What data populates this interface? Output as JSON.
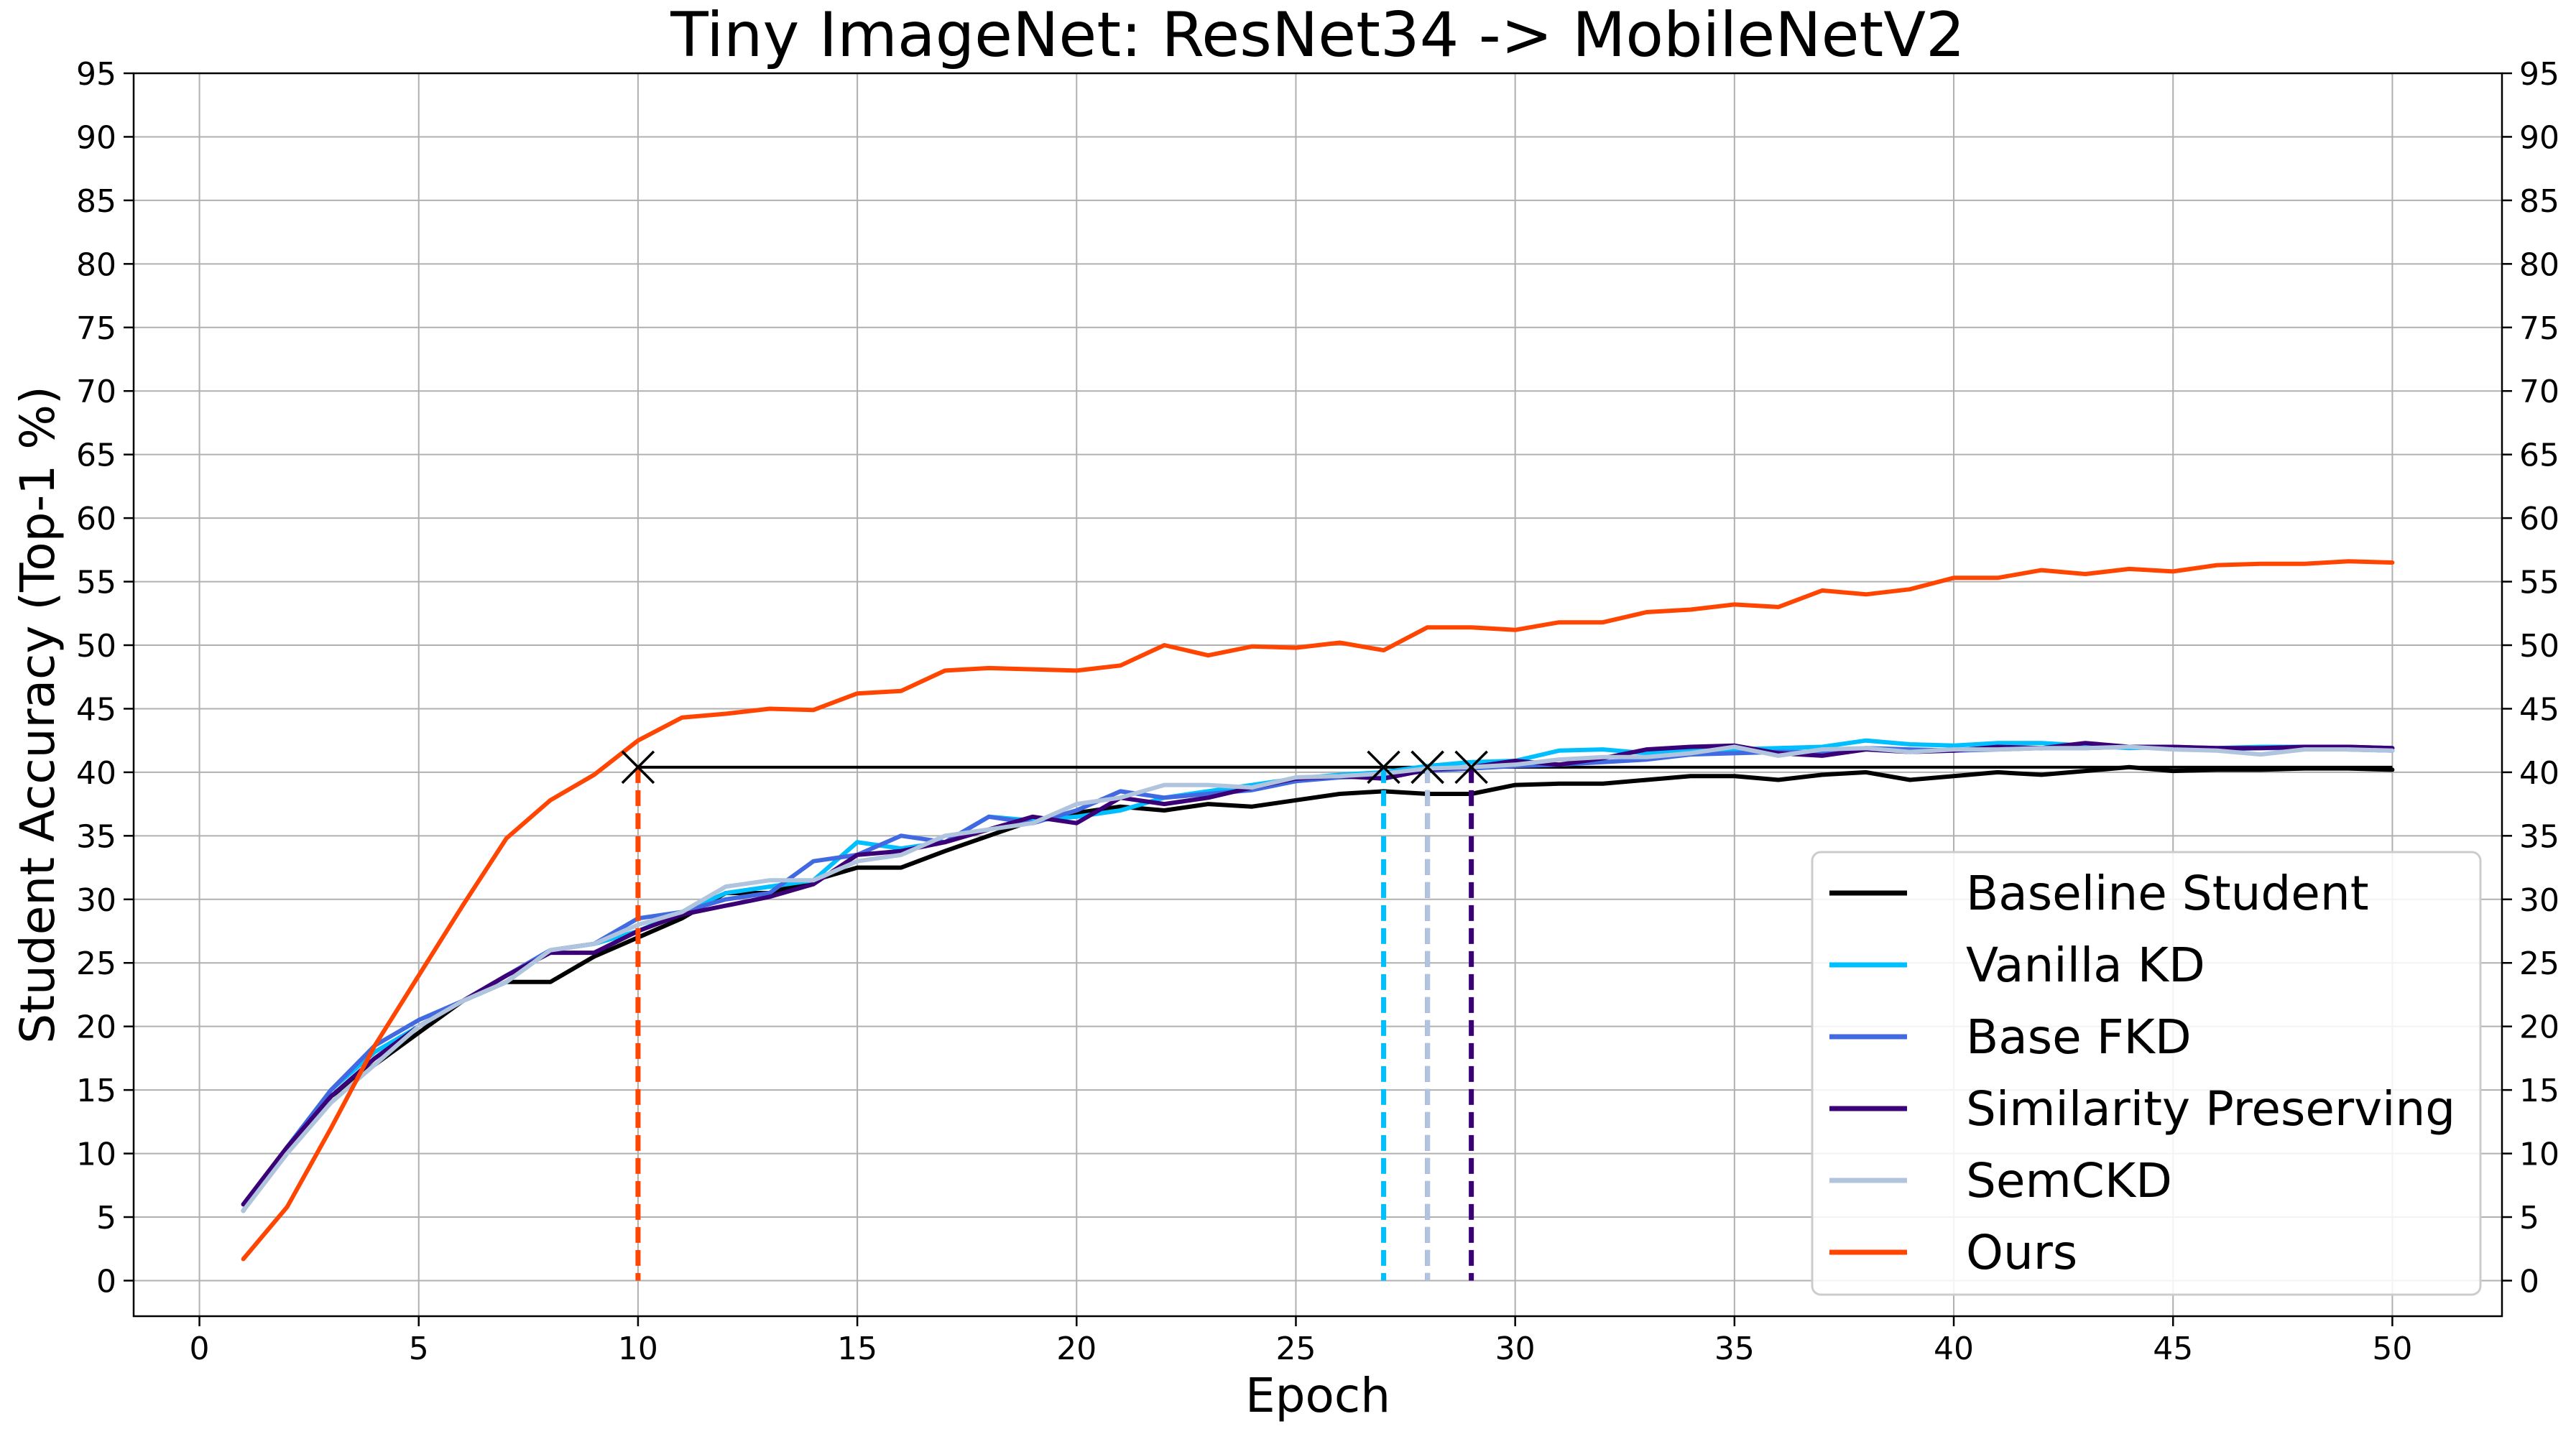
{
  "chart_data": {
    "type": "line",
    "title": "Tiny ImageNet: ResNet34 -> MobileNetV2",
    "xlabel": "Epoch",
    "ylabel": "Student Accuracy (Top-1 %)",
    "xlim": [
      -1.5,
      52.5
    ],
    "ylim": [
      -2.8,
      95
    ],
    "xticks": [
      0,
      5,
      10,
      15,
      20,
      25,
      30,
      35,
      40,
      45,
      50
    ],
    "yticks": [
      0,
      5,
      10,
      15,
      20,
      25,
      30,
      35,
      40,
      45,
      50,
      55,
      60,
      65,
      70,
      75,
      80,
      85,
      90,
      95
    ],
    "grid": true,
    "right_axis_labels": true,
    "legend_position": "lower-right",
    "x": [
      1,
      2,
      3,
      4,
      5,
      6,
      7,
      8,
      9,
      10,
      11,
      12,
      13,
      14,
      15,
      16,
      17,
      18,
      19,
      20,
      21,
      22,
      23,
      24,
      25,
      26,
      27,
      28,
      29,
      30,
      31,
      32,
      33,
      34,
      35,
      36,
      37,
      38,
      39,
      40,
      41,
      42,
      43,
      44,
      45,
      46,
      47,
      48,
      49,
      50
    ],
    "series": [
      {
        "name": "Baseline Student",
        "color": "#000000",
        "values": [
          5.5,
          10.5,
          14.5,
          17,
          19.5,
          22,
          23.5,
          23.5,
          25.5,
          27,
          28.5,
          30.5,
          30.5,
          31.5,
          32.5,
          32.5,
          33.8,
          35,
          36.2,
          36.8,
          37.3,
          37,
          37.5,
          37.3,
          37.8,
          38.3,
          38.5,
          38.3,
          38.3,
          39,
          39.1,
          39.1,
          39.4,
          39.7,
          39.7,
          39.4,
          39.8,
          40,
          39.4,
          39.7,
          40,
          39.8,
          40.1,
          40.4,
          40.1,
          40.2,
          40.2,
          40.3,
          40.3,
          40.2
        ]
      },
      {
        "name": "Vanilla KD",
        "color": "#00bfff",
        "values": [
          5.5,
          10.5,
          15,
          18,
          20,
          22,
          23.5,
          26,
          26.5,
          27.5,
          29,
          30.5,
          31,
          31.5,
          34.5,
          34,
          34.5,
          36.5,
          36.2,
          36.5,
          37,
          38,
          38.5,
          39,
          39.5,
          39.8,
          40,
          40.5,
          40.8,
          40.9,
          41.7,
          41.8,
          41.5,
          41.8,
          41.8,
          41.9,
          42,
          42.5,
          42.2,
          42.1,
          42.3,
          42.3,
          42.1,
          41.9,
          42,
          41.9,
          42,
          42,
          42,
          41.9
        ]
      },
      {
        "name": "Base FKD",
        "color": "#4169e1",
        "values": [
          6,
          10.5,
          15,
          18.5,
          20.5,
          22,
          24,
          26,
          26.5,
          28.5,
          29,
          30,
          30.5,
          33,
          33.5,
          35,
          34.5,
          36.5,
          36,
          37,
          38.5,
          38,
          38.3,
          38.6,
          39.3,
          39.6,
          39.7,
          40.1,
          40.3,
          40.5,
          40.6,
          40.8,
          41,
          41.4,
          41.5,
          41.6,
          41.6,
          41.9,
          41.8,
          41.7,
          41.8,
          41.9,
          41.9,
          42,
          41.9,
          41.8,
          41.9,
          41.9,
          41.8,
          41.7
        ]
      },
      {
        "name": "Similarity Preserving",
        "color": "#3b0078",
        "values": [
          6,
          10.5,
          14.5,
          17.5,
          20,
          22,
          24,
          25.8,
          25.8,
          27.5,
          28.8,
          29.5,
          30.2,
          31.2,
          33.5,
          33.8,
          34.5,
          35.5,
          36.5,
          36,
          38,
          37.5,
          38,
          38.8,
          39.5,
          39.7,
          39.5,
          40.2,
          40.4,
          40.9,
          40.6,
          41.1,
          41.8,
          42,
          42.1,
          41.5,
          41.3,
          41.8,
          41.6,
          41.7,
          42,
          41.9,
          42.3,
          42,
          42,
          41.9,
          41.9,
          42,
          42,
          41.9
        ]
      },
      {
        "name": "SemCKD",
        "color": "#b0c4de",
        "values": [
          5.5,
          10,
          14,
          17,
          20,
          22,
          23.5,
          26,
          26.5,
          28,
          29,
          31,
          31.5,
          31.5,
          33,
          33.5,
          35,
          35.5,
          36,
          37.5,
          38,
          39,
          39,
          38.8,
          39.6,
          39.7,
          39.9,
          40.3,
          40.4,
          40.6,
          41,
          41.2,
          41.2,
          41.5,
          42,
          41.3,
          41.8,
          41.9,
          41.6,
          41.8,
          41.8,
          41.9,
          41.9,
          42,
          41.8,
          41.7,
          41.4,
          41.8,
          41.8,
          41.7
        ]
      },
      {
        "name": "Ours",
        "color": "#ff4500",
        "values": [
          1.7,
          5.8,
          12,
          18.5,
          24,
          29.5,
          34.8,
          37.8,
          39.8,
          42.5,
          44.3,
          44.6,
          45,
          44.9,
          46.2,
          46.4,
          48,
          48.2,
          48.1,
          48,
          48.4,
          50,
          49.2,
          49.9,
          49.8,
          50.2,
          49.6,
          51.4,
          51.4,
          51.2,
          51.8,
          51.8,
          52.6,
          52.8,
          53.2,
          53,
          54.3,
          54,
          54.4,
          55.3,
          55.3,
          55.9,
          55.6,
          56,
          55.8,
          56.3,
          56.4,
          56.4,
          56.6,
          56.5
        ]
      }
    ],
    "reference_line": {
      "color": "#000000",
      "y": 40.4,
      "x_start": 10,
      "x_end": 50
    },
    "markers": [
      {
        "x": 10,
        "y": 40.4,
        "color": "#ff4500"
      },
      {
        "x": 27,
        "y": 40.4,
        "color": "#00bfff"
      },
      {
        "x": 28,
        "y": 40.4,
        "color": "#4169e1"
      },
      {
        "x": 28,
        "y": 40.4,
        "color": "#b0c4de"
      },
      {
        "x": 29,
        "y": 40.4,
        "color": "#3b0078"
      }
    ]
  }
}
